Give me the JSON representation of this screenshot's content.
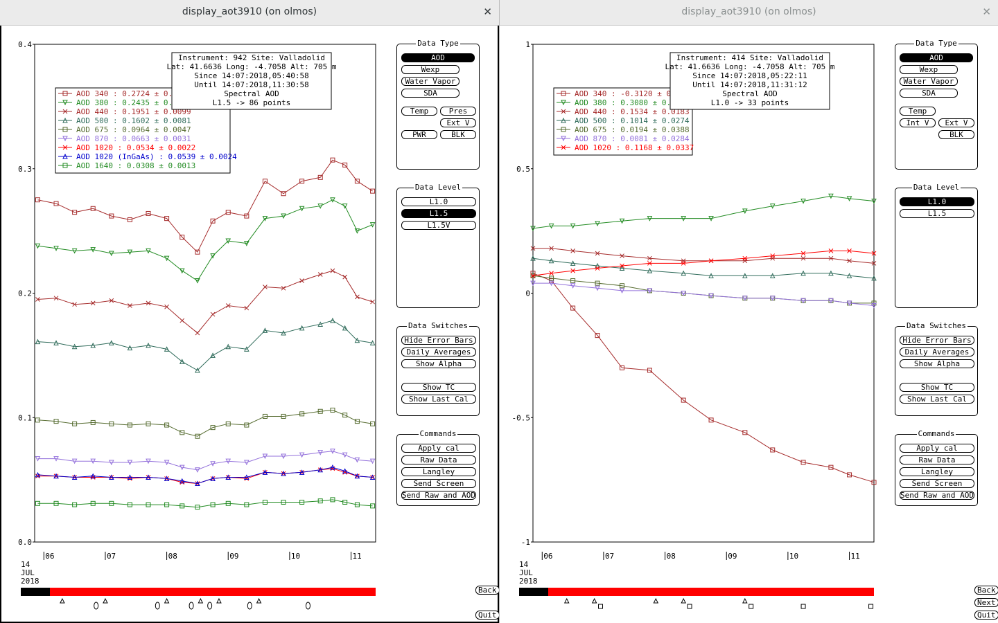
{
  "windows": [
    {
      "title": "display_aot3910 (on olmos)",
      "close_glyph": "✕",
      "info": [
        "Instrument: 942 Site: Valladolid",
        "Lat: 41.6636 Long: -4.7058 Alt: 705 m",
        "Since 14:07:2018,05:40:58",
        "Until 14:07:2018,11:30:58",
        "Spectral AOD",
        "L1.5 -> 86 points"
      ],
      "legend": [
        {
          "text": "AOD 340   : 0.2724 ± 0.0",
          "color": "#a52a2a",
          "marker": "square"
        },
        {
          "text": "AOD 380   : 0.2435 ± 0.0",
          "color": "#228b22",
          "marker": "tri-down"
        },
        {
          "text": "AOD 440   : 0.1951 ± 0.0099",
          "color": "#a52a2a",
          "marker": "x"
        },
        {
          "text": "AOD 500   : 0.1602 ± 0.0081",
          "color": "#2f6b5a",
          "marker": "tri-up"
        },
        {
          "text": "AOD 675   : 0.0964 ± 0.0047",
          "color": "#556b2f",
          "marker": "square"
        },
        {
          "text": "AOD 870   : 0.0663 ± 0.0031",
          "color": "#9370db",
          "marker": "tri-down"
        },
        {
          "text": "AOD 1020  : 0.0534 ± 0.0022",
          "color": "#ff0000",
          "marker": "x"
        },
        {
          "text": "AOD 1020 (InGaAs)  : 0.0539 ± 0.0024",
          "color": "#0000cd",
          "marker": "tri-up"
        },
        {
          "text": "AOD 1640  : 0.0308 ± 0.0013",
          "color": "#228b22",
          "marker": "square"
        }
      ],
      "data_type": {
        "title": "Data Type",
        "buttons": [
          "AOD",
          "Wexp",
          "Water Vapor",
          "SDA"
        ],
        "active": "AOD",
        "extra": [
          "Temp",
          "Pres",
          "Ext V",
          "PWR",
          "BLK"
        ]
      },
      "data_level": {
        "title": "Data Level",
        "buttons": [
          "L1.0",
          "L1.5",
          "L1.5V"
        ],
        "active": "L1.5"
      },
      "data_switches": {
        "title": "Data Switches",
        "buttons": [
          "Hide Error Bars",
          "Daily Averages",
          "Show Alpha",
          "Show TC",
          "Show Last Cal"
        ]
      },
      "commands": {
        "title": "Commands",
        "buttons": [
          "Apply cal",
          "Raw Data",
          "Langley",
          "Send Screen",
          "Send Raw and AOD"
        ]
      },
      "side_buttons": [
        "Back",
        "Quit"
      ],
      "date_label": [
        "14",
        "JUL",
        "2018"
      ],
      "x_ticks": [
        "06",
        "07",
        "08",
        "09",
        "10",
        "11"
      ]
    },
    {
      "title": "display_aot3910 (on olmos)",
      "close_glyph": "✕",
      "info": [
        "Instrument: 414 Site: Valladolid",
        "Lat: 41.6636 Long: -4.7058 Alt: 705 m",
        "Since 14:07:2018,05:22:11",
        "Until 14:07:2018,11:31:12",
        "Spectral AOD",
        "L1.0 -> 33 points"
      ],
      "legend": [
        {
          "text": "AOD 340   : -0.3120 ± 0.",
          "color": "#a52a2a",
          "marker": "square"
        },
        {
          "text": "AOD 380   : 0.3080 ± 0.0",
          "color": "#228b22",
          "marker": "tri-down"
        },
        {
          "text": "AOD 440   : 0.1534 ± 0.0183",
          "color": "#a52a2a",
          "marker": "x"
        },
        {
          "text": "AOD 500   : 0.1014 ± 0.0274",
          "color": "#2f6b5a",
          "marker": "tri-up"
        },
        {
          "text": "AOD 675   : 0.0194 ± 0.0388",
          "color": "#556b2f",
          "marker": "square"
        },
        {
          "text": "AOD 870   : 0.0081 ± 0.0284",
          "color": "#9370db",
          "marker": "tri-down"
        },
        {
          "text": "AOD 1020  : 0.1168 ± 0.0337",
          "color": "#ff0000",
          "marker": "x"
        }
      ],
      "data_type": {
        "title": "Data Type",
        "buttons": [
          "AOD",
          "Wexp",
          "Water Vapor",
          "SDA"
        ],
        "active": "AOD",
        "extra": [
          "Temp",
          "Int V",
          "Ext V",
          "BLK"
        ]
      },
      "data_level": {
        "title": "Data Level",
        "buttons": [
          "L1.0",
          "L1.5"
        ],
        "active": "L1.0"
      },
      "data_switches": {
        "title": "Data Switches",
        "buttons": [
          "Hide Error Bars",
          "Daily Averages",
          "Show Alpha",
          "Show TC",
          "Show Last Cal"
        ]
      },
      "commands": {
        "title": "Commands",
        "buttons": [
          "Apply cal",
          "Raw Data",
          "Langley",
          "Send Screen",
          "Send Raw and AOD"
        ]
      },
      "side_buttons": [
        "Back",
        "Next",
        "Quit"
      ],
      "date_label": [
        "14",
        "JUL",
        "2018"
      ],
      "x_ticks": [
        "06",
        "07",
        "08",
        "09",
        "10",
        "11"
      ]
    }
  ],
  "chart_data": [
    {
      "type": "line",
      "title": "",
      "xlabel": "",
      "ylabel": "",
      "x_unit": "hour UTC, 14 JUL 2018",
      "xlim": [
        5.85,
        11.4
      ],
      "ylim": [
        0.0,
        0.4
      ],
      "y_ticks": [
        "0.0",
        "0.1",
        "0.2",
        "0.3",
        "0.4"
      ],
      "x": [
        5.9,
        6.2,
        6.5,
        6.8,
        7.1,
        7.4,
        7.7,
        8.0,
        8.25,
        8.5,
        8.75,
        9.0,
        9.3,
        9.6,
        9.9,
        10.2,
        10.5,
        10.7,
        10.9,
        11.1,
        11.35
      ],
      "series": [
        {
          "name": "AOD 340",
          "color": "#a52a2a",
          "marker": "square",
          "y": [
            0.275,
            0.272,
            0.265,
            0.268,
            0.262,
            0.259,
            0.264,
            0.26,
            0.245,
            0.233,
            0.258,
            0.265,
            0.262,
            0.29,
            0.28,
            0.29,
            0.293,
            0.307,
            0.303,
            0.29,
            0.282
          ]
        },
        {
          "name": "AOD 380",
          "color": "#228b22",
          "marker": "tri-down",
          "y": [
            0.238,
            0.236,
            0.234,
            0.235,
            0.232,
            0.233,
            0.234,
            0.228,
            0.218,
            0.21,
            0.23,
            0.242,
            0.24,
            0.26,
            0.262,
            0.268,
            0.27,
            0.275,
            0.27,
            0.25,
            0.255
          ]
        },
        {
          "name": "AOD 440",
          "color": "#a52a2a",
          "marker": "x",
          "y": [
            0.195,
            0.196,
            0.191,
            0.192,
            0.194,
            0.19,
            0.192,
            0.189,
            0.178,
            0.168,
            0.183,
            0.19,
            0.188,
            0.205,
            0.204,
            0.21,
            0.215,
            0.218,
            0.213,
            0.197,
            0.193
          ]
        },
        {
          "name": "AOD 500",
          "color": "#2f6b5a",
          "marker": "tri-up",
          "y": [
            0.161,
            0.16,
            0.157,
            0.158,
            0.16,
            0.156,
            0.158,
            0.155,
            0.145,
            0.138,
            0.15,
            0.157,
            0.155,
            0.17,
            0.168,
            0.172,
            0.175,
            0.178,
            0.172,
            0.162,
            0.16
          ]
        },
        {
          "name": "AOD 675",
          "color": "#556b2f",
          "marker": "square",
          "y": [
            0.098,
            0.097,
            0.095,
            0.096,
            0.095,
            0.094,
            0.095,
            0.094,
            0.088,
            0.085,
            0.092,
            0.095,
            0.094,
            0.101,
            0.101,
            0.103,
            0.105,
            0.106,
            0.102,
            0.097,
            0.095
          ]
        },
        {
          "name": "AOD 870",
          "color": "#9370db",
          "marker": "tri-down",
          "y": [
            0.067,
            0.067,
            0.065,
            0.065,
            0.064,
            0.064,
            0.065,
            0.064,
            0.06,
            0.058,
            0.063,
            0.065,
            0.064,
            0.069,
            0.069,
            0.07,
            0.072,
            0.073,
            0.07,
            0.066,
            0.065
          ]
        },
        {
          "name": "AOD 1020",
          "color": "#ff0000",
          "marker": "x",
          "y": [
            0.053,
            0.053,
            0.052,
            0.052,
            0.052,
            0.051,
            0.052,
            0.051,
            0.048,
            0.047,
            0.051,
            0.052,
            0.051,
            0.056,
            0.055,
            0.056,
            0.058,
            0.059,
            0.056,
            0.053,
            0.052
          ]
        },
        {
          "name": "AOD 1020 (InGaAs)",
          "color": "#0000cd",
          "marker": "tri-up",
          "y": [
            0.054,
            0.053,
            0.052,
            0.053,
            0.052,
            0.052,
            0.052,
            0.051,
            0.049,
            0.047,
            0.051,
            0.052,
            0.052,
            0.056,
            0.055,
            0.056,
            0.058,
            0.06,
            0.057,
            0.053,
            0.052
          ]
        },
        {
          "name": "AOD 1640",
          "color": "#228b22",
          "marker": "square",
          "y": [
            0.031,
            0.031,
            0.03,
            0.031,
            0.031,
            0.03,
            0.03,
            0.03,
            0.029,
            0.028,
            0.03,
            0.031,
            0.03,
            0.032,
            0.032,
            0.032,
            0.033,
            0.034,
            0.032,
            0.03,
            0.029
          ]
        }
      ]
    },
    {
      "type": "line",
      "title": "",
      "xlabel": "",
      "ylabel": "",
      "x_unit": "hour UTC, 14 JUL 2018",
      "xlim": [
        5.85,
        11.4
      ],
      "ylim": [
        -1.0,
        1.0
      ],
      "y_ticks": [
        "1",
        "0.5",
        "0",
        "-0.5",
        "-1"
      ],
      "x": [
        5.85,
        6.15,
        6.5,
        6.9,
        7.3,
        7.75,
        8.3,
        8.75,
        9.3,
        9.75,
        10.25,
        10.7,
        11.0,
        11.4
      ],
      "series": [
        {
          "name": "AOD 340",
          "color": "#a52a2a",
          "marker": "square",
          "y": [
            0.08,
            0.05,
            -0.06,
            -0.17,
            -0.3,
            -0.31,
            -0.43,
            -0.51,
            -0.56,
            -0.63,
            -0.68,
            -0.7,
            -0.73,
            -0.76
          ]
        },
        {
          "name": "AOD 380",
          "color": "#228b22",
          "marker": "tri-down",
          "y": [
            0.26,
            0.27,
            0.27,
            0.28,
            0.29,
            0.3,
            0.3,
            0.3,
            0.33,
            0.35,
            0.37,
            0.39,
            0.38,
            0.37
          ]
        },
        {
          "name": "AOD 440",
          "color": "#a52a2a",
          "marker": "x",
          "y": [
            0.18,
            0.18,
            0.17,
            0.16,
            0.15,
            0.14,
            0.13,
            0.13,
            0.13,
            0.14,
            0.14,
            0.14,
            0.13,
            0.12
          ]
        },
        {
          "name": "AOD 500",
          "color": "#2f6b5a",
          "marker": "tri-up",
          "y": [
            0.14,
            0.13,
            0.12,
            0.11,
            0.1,
            0.09,
            0.08,
            0.07,
            0.07,
            0.07,
            0.08,
            0.08,
            0.07,
            0.06
          ]
        },
        {
          "name": "AOD 675",
          "color": "#556b2f",
          "marker": "square",
          "y": [
            0.07,
            0.06,
            0.05,
            0.04,
            0.03,
            0.01,
            0.0,
            -0.01,
            -0.02,
            -0.02,
            -0.03,
            -0.03,
            -0.04,
            -0.04
          ]
        },
        {
          "name": "AOD 870",
          "color": "#9370db",
          "marker": "tri-down",
          "y": [
            0.04,
            0.04,
            0.03,
            0.02,
            0.01,
            0.01,
            0.0,
            -0.01,
            -0.02,
            -0.02,
            -0.03,
            -0.03,
            -0.04,
            -0.05
          ]
        },
        {
          "name": "AOD 1020",
          "color": "#ff0000",
          "marker": "x",
          "y": [
            0.07,
            0.08,
            0.09,
            0.1,
            0.11,
            0.12,
            0.12,
            0.13,
            0.14,
            0.15,
            0.16,
            0.17,
            0.17,
            0.16
          ]
        }
      ]
    }
  ]
}
